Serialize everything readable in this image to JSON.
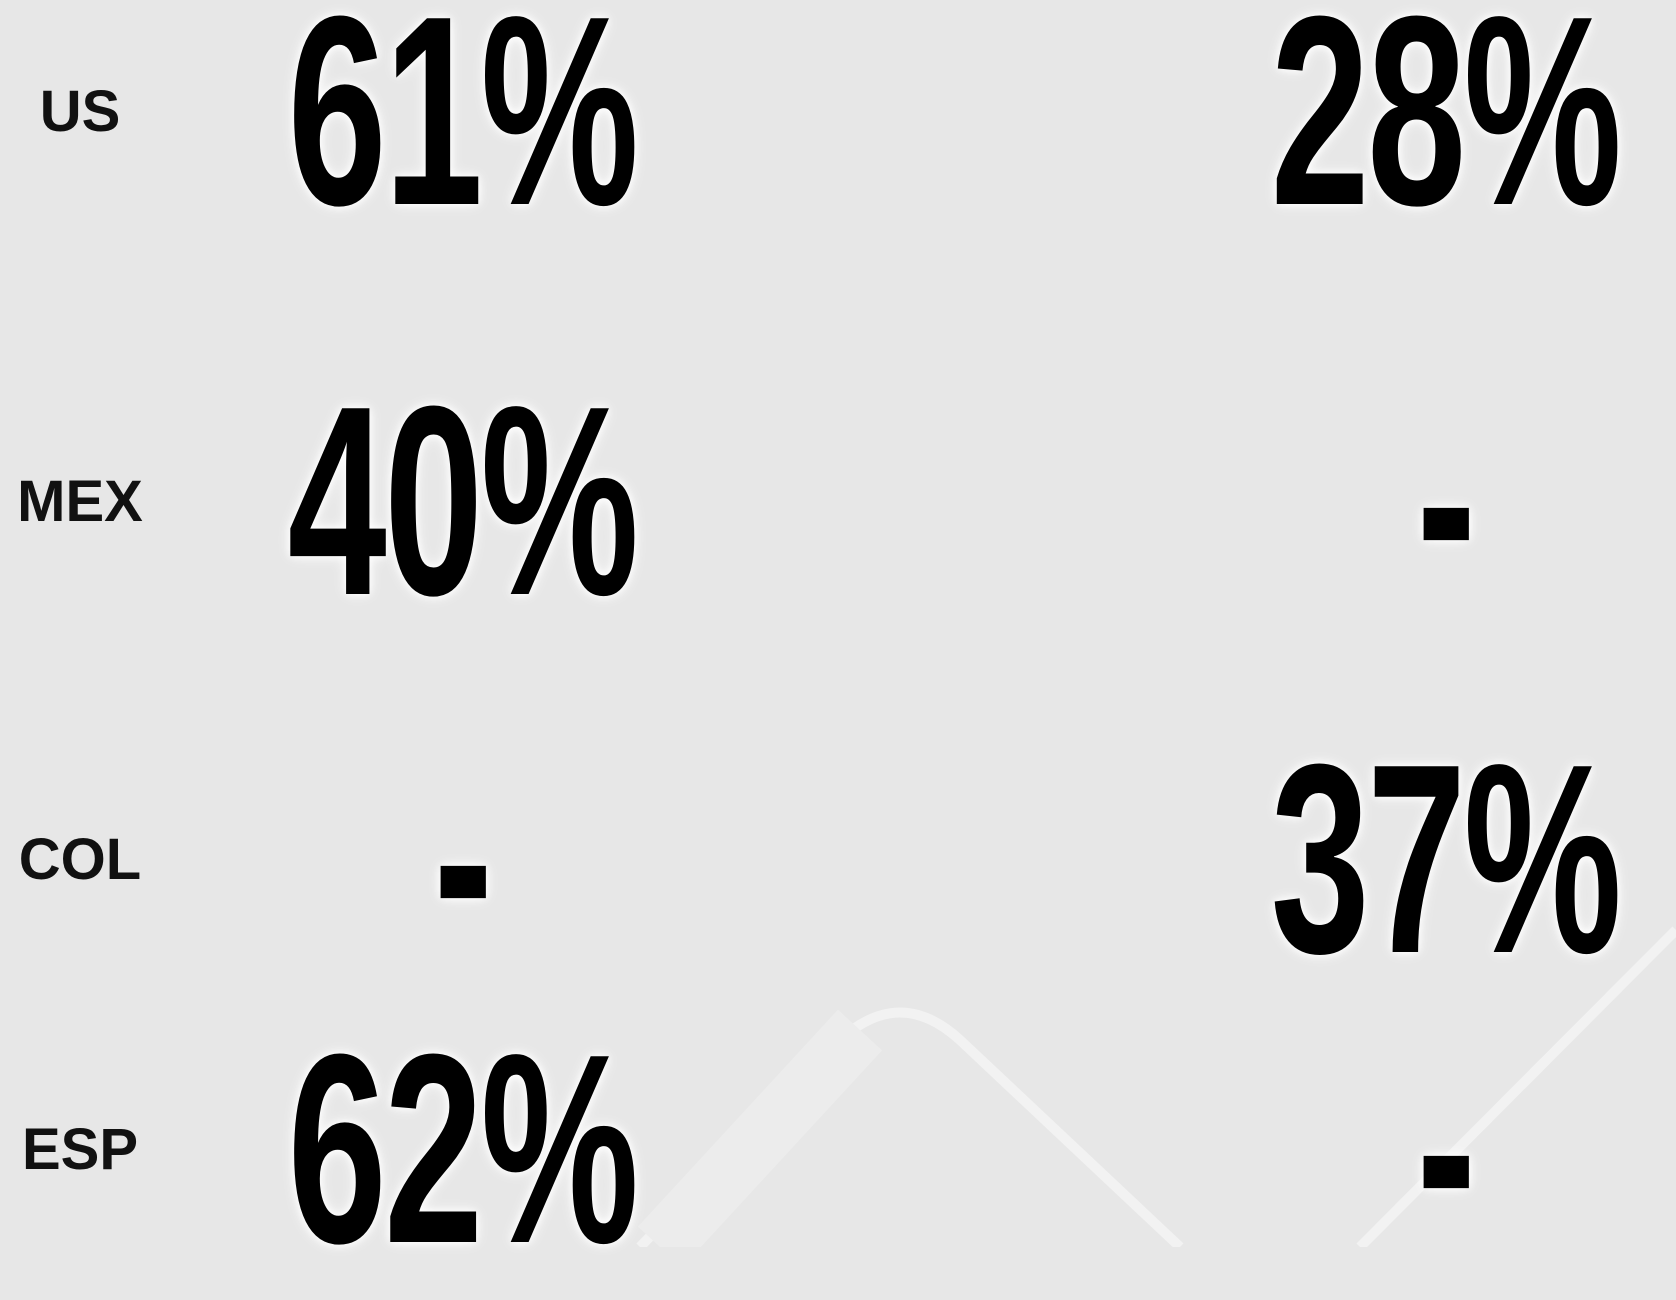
{
  "table": {
    "rows": [
      {
        "label": "US",
        "values": [
          "61%",
          "28%"
        ]
      },
      {
        "label": "MEX",
        "values": [
          "40%",
          "-"
        ]
      },
      {
        "label": "COL",
        "values": [
          "-",
          "37%"
        ]
      },
      {
        "label": "ESP",
        "values": [
          "62%",
          "-"
        ]
      }
    ]
  }
}
